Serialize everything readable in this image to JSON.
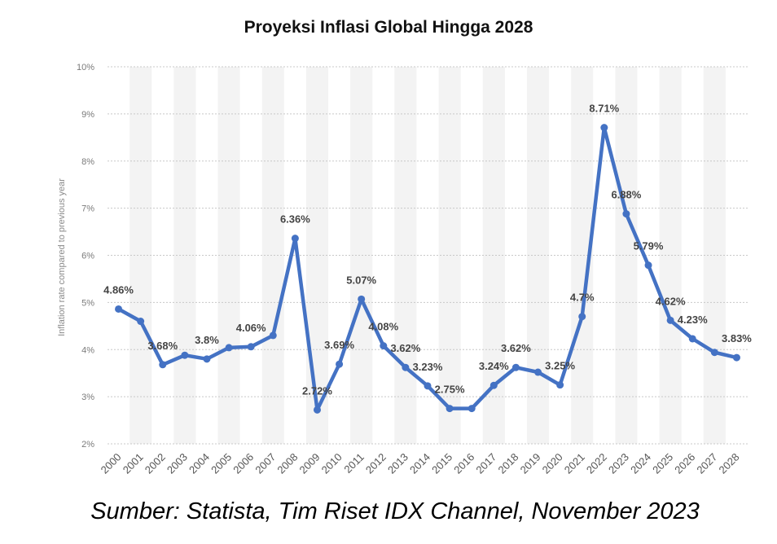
{
  "chart_data": {
    "type": "line",
    "title": "Proyeksi Inflasi Global Hingga 2028",
    "ylabel": "Inflation rate compared to previous year",
    "xlabel": "",
    "ylim": [
      2,
      10
    ],
    "yticks": [
      "2%",
      "3%",
      "4%",
      "5%",
      "6%",
      "7%",
      "8%",
      "9%",
      "10%"
    ],
    "grid": true,
    "color": "#4472c4",
    "categories": [
      "2000",
      "2001",
      "2002",
      "2003",
      "2004",
      "2005",
      "2006",
      "2007",
      "2008",
      "2009",
      "2010",
      "2011",
      "2012",
      "2013",
      "2014",
      "2015",
      "2016",
      "2017",
      "2018",
      "2019",
      "2020",
      "2021",
      "2022",
      "2023",
      "2024",
      "2025",
      "2026",
      "2027",
      "2028"
    ],
    "values": [
      4.86,
      4.6,
      3.68,
      3.88,
      3.8,
      4.04,
      4.06,
      4.3,
      6.36,
      2.72,
      3.69,
      5.07,
      4.08,
      3.62,
      3.23,
      2.75,
      2.75,
      3.24,
      3.62,
      3.52,
      3.25,
      4.7,
      8.71,
      6.88,
      5.79,
      4.62,
      4.23,
      3.94,
      3.83
    ],
    "data_labels": [
      {
        "index": 0,
        "text": "4.86%"
      },
      {
        "index": 2,
        "text": "3.68%"
      },
      {
        "index": 4,
        "text": "3.8%"
      },
      {
        "index": 6,
        "text": "4.06%"
      },
      {
        "index": 8,
        "text": "6.36%"
      },
      {
        "index": 9,
        "text": "2.72%"
      },
      {
        "index": 10,
        "text": "3.69%"
      },
      {
        "index": 11,
        "text": "5.07%"
      },
      {
        "index": 12,
        "text": "4.08%"
      },
      {
        "index": 13,
        "text": "3.62%"
      },
      {
        "index": 14,
        "text": "3.23%"
      },
      {
        "index": 15,
        "text": "2.75%"
      },
      {
        "index": 17,
        "text": "3.24%"
      },
      {
        "index": 18,
        "text": "3.62%"
      },
      {
        "index": 20,
        "text": "3.25%"
      },
      {
        "index": 21,
        "text": "4.7%"
      },
      {
        "index": 22,
        "text": "8.71%"
      },
      {
        "index": 23,
        "text": "6.88%"
      },
      {
        "index": 24,
        "text": "5.79%"
      },
      {
        "index": 25,
        "text": "4.62%"
      },
      {
        "index": 26,
        "text": "4.23%"
      },
      {
        "index": 28,
        "text": "3.83%"
      }
    ]
  },
  "source": "Sumber: Statista, Tim Riset IDX Channel, November 2023"
}
